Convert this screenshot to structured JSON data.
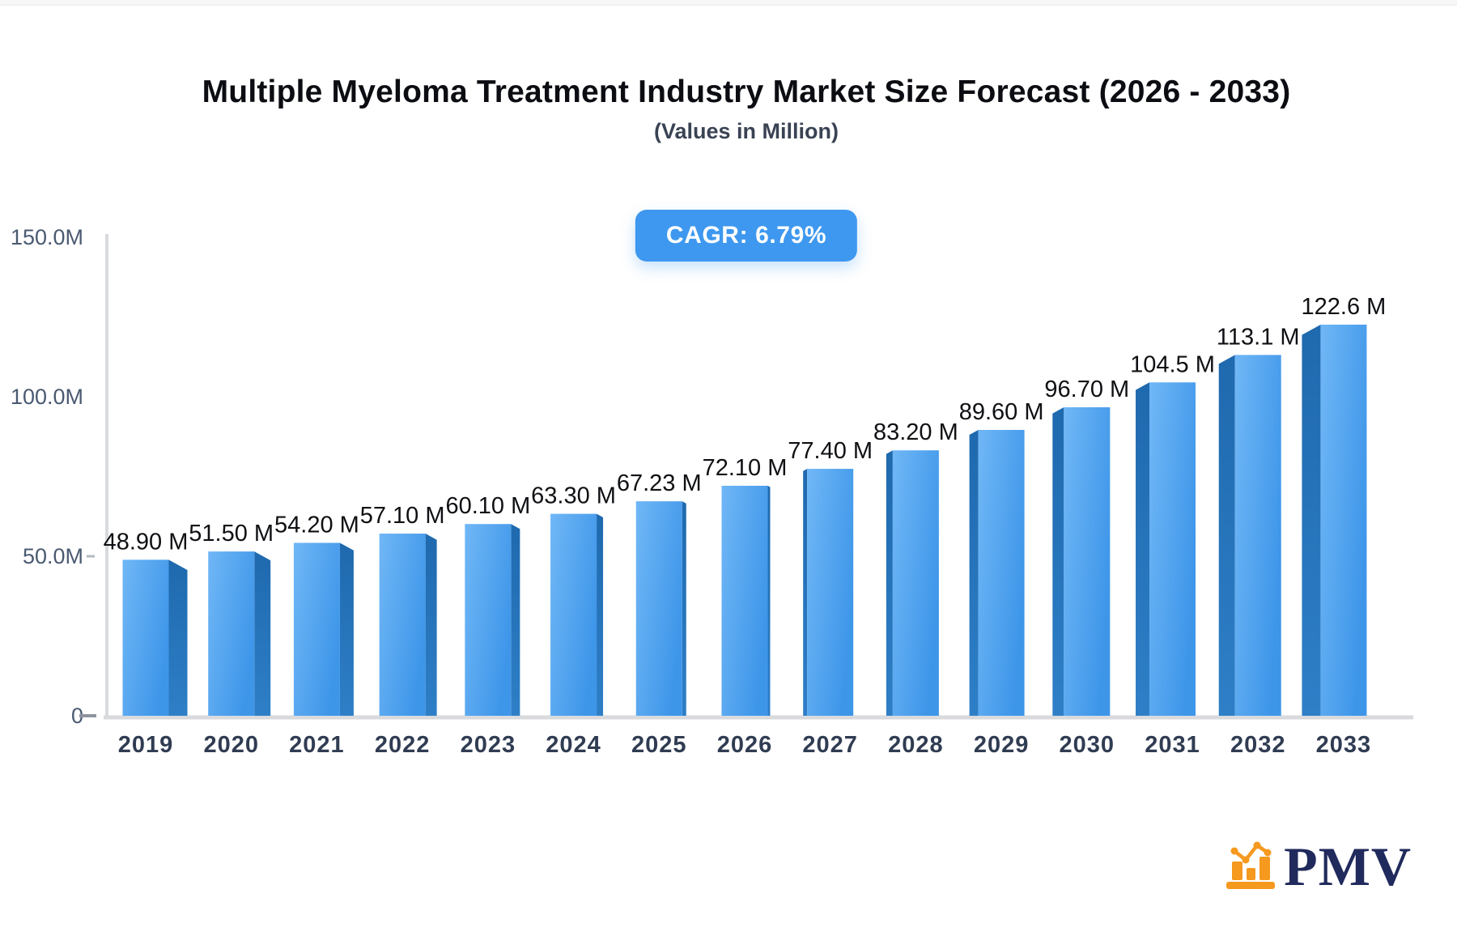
{
  "page": {
    "background": "#ffffff",
    "top_strip_color": "#f6f6f7"
  },
  "header": {
    "title": "Multiple Myeloma Treatment Industry Market Size Forecast (2026 - 2033)",
    "subtitle": "(Values in Million)"
  },
  "badge": {
    "label": "CAGR: 6.79%",
    "background": "#3e98ef",
    "text_color": "#ffffff"
  },
  "chart_data": {
    "type": "bar",
    "title": "Multiple Myeloma Treatment Industry Market Size Forecast (2026 - 2033)",
    "subtitle": "(Values in Million)",
    "unit": "Million",
    "effect": "3d-perspective-bars",
    "grid": false,
    "legend": false,
    "categories": [
      "2019",
      "2020",
      "2021",
      "2022",
      "2023",
      "2024",
      "2025",
      "2026",
      "2027",
      "2028",
      "2029",
      "2030",
      "2031",
      "2032",
      "2033"
    ],
    "values": [
      48.9,
      51.5,
      54.2,
      57.1,
      60.1,
      63.3,
      67.23,
      72.1,
      77.4,
      83.2,
      89.6,
      96.7,
      104.5,
      113.1,
      122.6
    ],
    "value_labels": [
      "48.90 M",
      "51.50 M",
      "54.20 M",
      "57.10 M",
      "60.10 M",
      "63.30 M",
      "67.23 M",
      "72.10 M",
      "77.40 M",
      "83.20 M",
      "89.60 M",
      "96.70 M",
      "104.5 M",
      "113.1 M",
      "122.6 M"
    ],
    "xlabel": "",
    "ylabel": "",
    "ylim": [
      0,
      150
    ],
    "y_axis": {
      "ticks": [
        {
          "label": "150.0M",
          "value": 150
        },
        {
          "label": "100.0M",
          "value": 100
        },
        {
          "label": "50.0M",
          "value": 50
        },
        {
          "label": "0",
          "value": 0
        }
      ]
    },
    "colors": {
      "bar_face_light": "#70b7f6",
      "bar_face_dark": "#3e96e9",
      "bar_side_dark": "#1f69ae",
      "bar_side_light": "#2e7fc7",
      "axis_line": "#d9dade",
      "tick_label": "#4a5a72",
      "year_label": "#303c52",
      "value_label": "#0e1013"
    }
  },
  "logo": {
    "text": "PMV",
    "text_color": "#202a5c",
    "icon": "bar-chart-logo-icon",
    "icon_color": "#f5991f"
  }
}
